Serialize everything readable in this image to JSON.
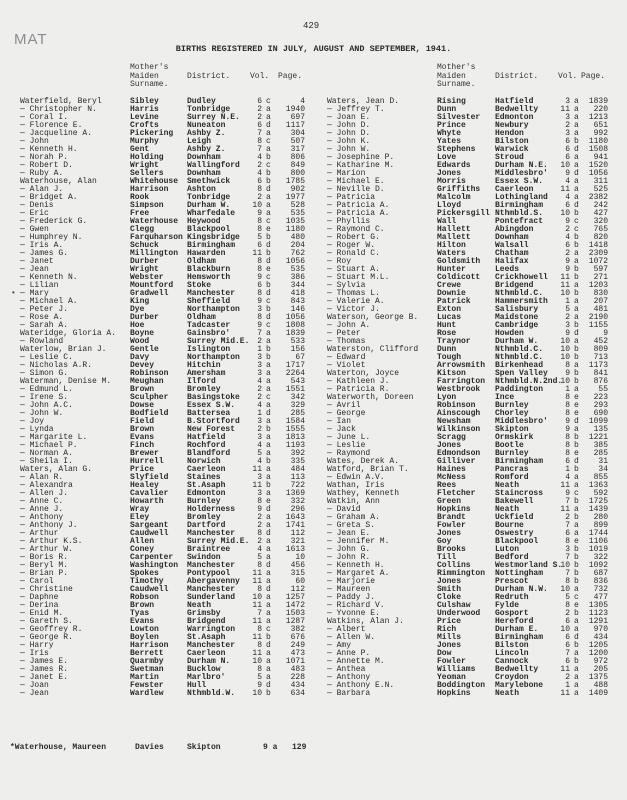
{
  "stamp": "MAT",
  "page_number": "429",
  "title": "BIRTHS REGISTERED IN JULY, AUGUST AND SEPTEMBER, 1941.",
  "column_headers": {
    "maiden": [
      "Mother's",
      "Maiden",
      "Surname."
    ],
    "district": "District.",
    "vol": "Vol.",
    "page": "Page."
  },
  "left_rows": [
    [
      "Waterfield, Beryl",
      "Sibley",
      "Dudley",
      "6",
      "c",
      "4"
    ],
    [
      "— Christopher N.",
      "Harris",
      "Tonbridge",
      "2",
      "a",
      "1940"
    ],
    [
      "— Coral I.",
      "Levine",
      "Surrey N.E.",
      "2",
      "a",
      "697"
    ],
    [
      "— Florence E.",
      "Crofts",
      "Nuneaton",
      "6",
      "d",
      "1117"
    ],
    [
      "— Jacqueline A.",
      "Pickering",
      "Ashby Z.",
      "7",
      "a",
      "304"
    ],
    [
      "— John",
      "Murphy",
      "Leigh",
      "8",
      "c",
      "507"
    ],
    [
      "— Kenneth H.",
      "Gent",
      "Ashby Z.",
      "7",
      "a",
      "317"
    ],
    [
      "— Norah P.",
      "Holding",
      "Downham",
      "4",
      "b",
      "806"
    ],
    [
      "— Robert D.",
      "Wright",
      "Wallingford",
      "2",
      "c",
      "849"
    ],
    [
      "— Ruby A.",
      "Sellers",
      "Downham",
      "4",
      "b",
      "800"
    ],
    [
      "Waterhouse, Alan",
      "Whitehouse",
      "Smethwick",
      "6",
      "b",
      "1785"
    ],
    [
      "— Alan J.",
      "Harrison",
      "Ashton",
      "8",
      "d",
      "902"
    ],
    [
      "— Bridget A.",
      "Rook",
      "Tonbridge",
      "2",
      "a",
      "1977"
    ],
    [
      "— Denis",
      "Simpson",
      "Durham W.",
      "10",
      "a",
      "528"
    ],
    [
      "— Eric",
      "Free",
      "Wharfedale",
      "9",
      "a",
      "535"
    ],
    [
      "— Frederick G.",
      "Waterhouse",
      "Heywood",
      "8",
      "c",
      "1035"
    ],
    [
      "— Gwen",
      "Clegg",
      "Blackpool",
      "8",
      "e",
      "1180"
    ],
    [
      "— Humphrey N.",
      "Farquharson",
      "Kingsbridge",
      "5",
      "b",
      "480"
    ],
    [
      "— Iris A.",
      "Schuck",
      "Birmingham",
      "6",
      "d",
      "204"
    ],
    [
      "— James G.",
      "Millington",
      "Hawarden",
      "11",
      "b",
      "762"
    ],
    [
      "— Janet",
      "Durber",
      "Oldham",
      "8",
      "d",
      "1056"
    ],
    [
      "— Jean",
      "Wright",
      "Blackburn",
      "8",
      "e",
      "535"
    ],
    [
      "— Kenneth N.",
      "Webster",
      "Hemsworth",
      "9",
      "c",
      "386"
    ],
    [
      "— Lilian",
      "Mountford",
      "Stoke",
      "6",
      "b",
      "344"
    ],
    [
      "— Mary",
      "Gradwell",
      "Manchester",
      "8",
      "d",
      "418"
    ],
    [
      "— Michael A.",
      "King",
      "Sheffield",
      "9",
      "c",
      "843"
    ],
    [
      "— Peter J.",
      "Dye",
      "Northampton",
      "3",
      "b",
      "146"
    ],
    [
      "— Rose A.",
      "Durber",
      "Oldham",
      "8",
      "d",
      "1056"
    ],
    [
      "— Sarah A.",
      "Hoe",
      "Tadcaster",
      "9",
      "c",
      "1808"
    ],
    [
      "Wateridge, Gloria A.",
      "Boyne",
      "Gainsbro'",
      "7",
      "a",
      "1839"
    ],
    [
      "— Rowland",
      "Wood",
      "Surrey Mid.E.",
      "2",
      "a",
      "533"
    ],
    [
      "Waterlow, Brian J.",
      "Gentle",
      "Islington",
      "1",
      "b",
      "156"
    ],
    [
      "— Leslie C.",
      "Davy",
      "Northampton",
      "3",
      "b",
      "67"
    ],
    [
      "— Nicholas A.R.",
      "Devey",
      "Hitchin",
      "3",
      "a",
      "1717"
    ],
    [
      "— Simon G.",
      "Robinson",
      "Amersham",
      "3",
      "a",
      "2264"
    ],
    [
      "Waterman, Denise M.",
      "Meughan",
      "Ilford",
      "4",
      "a",
      "543"
    ],
    [
      "— Edmund L.",
      "Brown",
      "Bromley",
      "2",
      "a",
      "1551"
    ],
    [
      "— Irene S.",
      "Sculpher",
      "Basingstoke",
      "2",
      "c",
      "342"
    ],
    [
      "— John A.C.",
      "Dowse",
      "Essex S.W.",
      "4",
      "a",
      "329"
    ],
    [
      "— John W.",
      "Bodfield",
      "Battersea",
      "1",
      "d",
      "285"
    ],
    [
      "— Joy",
      "Field",
      "B.Stortford",
      "3",
      "a",
      "1584"
    ],
    [
      "— Lynda",
      "Brown",
      "New Forest",
      "2",
      "b",
      "1555"
    ],
    [
      "— Margarite L.",
      "Evans",
      "Hatfield",
      "3",
      "a",
      "1813"
    ],
    [
      "— Michael P.",
      "Finch",
      "Rochford",
      "4",
      "a",
      "1193"
    ],
    [
      "— Norman A.",
      "Brewer",
      "Blandford",
      "5",
      "a",
      "392"
    ],
    [
      "— Sheila I.",
      "Hurrell",
      "Norwich",
      "4",
      "b",
      "335"
    ],
    [
      "Waters, Alan G.",
      "Price",
      "Caerleon",
      "11",
      "a",
      "484"
    ],
    [
      "— Alan R.",
      "Slyfield",
      "Staines",
      "3",
      "a",
      "113"
    ],
    [
      "— Alexandra",
      "Healey",
      "St.Asaph",
      "11",
      "b",
      "722"
    ],
    [
      "— Allen J.",
      "Cavalier",
      "Edmonton",
      "3",
      "a",
      "1369"
    ],
    [
      "— Anne C.",
      "Howarth",
      "Burnley",
      "8",
      "e",
      "332"
    ],
    [
      "— Anne J.",
      "Wray",
      "Holderness",
      "9",
      "d",
      "296"
    ],
    [
      "— Anthony",
      "Eley",
      "Bromley",
      "2",
      "a",
      "1643"
    ],
    [
      "— Anthony J.",
      "Sargeant",
      "Dartford",
      "2",
      "a",
      "1741"
    ],
    [
      "— Arthur",
      "Caudwell",
      "Manchester",
      "8",
      "d",
      "112"
    ],
    [
      "— Arthur K.S.",
      "Allen",
      "Surrey Mid.E.",
      "2",
      "a",
      "321"
    ],
    [
      "— Arthur W.",
      "Coney",
      "Braintree",
      "4",
      "a",
      "1613"
    ],
    [
      "— Boris R.",
      "Carpenter",
      "Swindon",
      "5",
      "a",
      "10"
    ],
    [
      "— Beryl M.",
      "Washington",
      "Manchester",
      "8",
      "d",
      "456"
    ],
    [
      "— Brian P.",
      "Spokes",
      "Pontypool",
      "11",
      "a",
      "315"
    ],
    [
      "— Carol",
      "Timothy",
      "Abergavenny",
      "11",
      "a",
      "60"
    ],
    [
      "— Christine",
      "Caudwell",
      "Manchester",
      "8",
      "d",
      "112"
    ],
    [
      "— Daphne",
      "Robson",
      "Sunderland",
      "10",
      "a",
      "1257"
    ],
    [
      "— Derina",
      "Brown",
      "Neath",
      "11",
      "a",
      "1472"
    ],
    [
      "— Enid M.",
      "Tyas",
      "Grimsby",
      "7",
      "a",
      "1503"
    ],
    [
      "— Gareth S.",
      "Evans",
      "Bridgend",
      "11",
      "a",
      "1287"
    ],
    [
      "— Geoffrey R.",
      "Lowton",
      "Warrington",
      "8",
      "c",
      "382"
    ],
    [
      "— George R.",
      "Boylen",
      "St.Asaph",
      "11",
      "b",
      "676"
    ],
    [
      "— Harry",
      "Harrison",
      "Manchester",
      "8",
      "d",
      "249"
    ],
    [
      "— Iris",
      "Berrett",
      "Caerleon",
      "11",
      "a",
      "473"
    ],
    [
      "— James E.",
      "Quarmby",
      "Durham N.",
      "10",
      "a",
      "1071"
    ],
    [
      "— James R.",
      "Swetman",
      "Bucklow",
      "8",
      "a",
      "483"
    ],
    [
      "— Janet E.",
      "Martin",
      "Marlbro'",
      "5",
      "a",
      "228"
    ],
    [
      "— Joan",
      "Fewster",
      "Hull",
      "9",
      "d",
      "434"
    ],
    [
      "— Jean",
      "Wardlew",
      "Nthmbld.W.",
      "10",
      "b",
      "634"
    ]
  ],
  "right_rows": [
    [
      "Waters, Jean D.",
      "Rising",
      "Hatfield",
      "3",
      "a",
      "1839"
    ],
    [
      "— Jeffrey T.",
      "Dunn",
      "Bedwellty",
      "11",
      "a",
      "220"
    ],
    [
      "— Joan E.",
      "Silvester",
      "Edmonton",
      "3",
      "a",
      "1213"
    ],
    [
      "— John D.",
      "Prince",
      "Newbury",
      "2",
      "a",
      "651"
    ],
    [
      "— John D.",
      "Whyte",
      "Hendon",
      "3",
      "a",
      "992"
    ],
    [
      "— John K.",
      "Yates",
      "Bilston",
      "6",
      "b",
      "1180"
    ],
    [
      "— John W.",
      "Stephens",
      "Warwick",
      "6",
      "d",
      "1508"
    ],
    [
      "— Josephine P.",
      "Love",
      "Stroud",
      "6",
      "a",
      "941"
    ],
    [
      "— Katharine M.",
      "Edwards",
      "Durham N.E.",
      "10",
      "a",
      "1520"
    ],
    [
      "— Marion",
      "Jones",
      "Middlesbro'",
      "9",
      "d",
      "1056"
    ],
    [
      "— Michael E.",
      "Morris",
      "Essex S.W.",
      "4",
      "a",
      "311"
    ],
    [
      "— Neville D.",
      "Griffiths",
      "Caerleon",
      "11",
      "a",
      "525"
    ],
    [
      "— Patricia",
      "Malcolm",
      "Lothingland",
      "4",
      "a",
      "2382"
    ],
    [
      "— Patricia A.",
      "Lloyd",
      "Birmingham",
      "6",
      "d",
      "242"
    ],
    [
      "— Patricia A.",
      "Pickersgill",
      "Nthmbld.S.",
      "10",
      "b",
      "427"
    ],
    [
      "— Phyllis",
      "Wall",
      "Pontefract",
      "9",
      "c",
      "320"
    ],
    [
      "— Raymond C.",
      "Hallett",
      "Abingdon",
      "2",
      "c",
      "765"
    ],
    [
      "— Robert G.",
      "Mallett",
      "Downham",
      "4",
      "b",
      "820"
    ],
    [
      "— Roger W.",
      "Hilton",
      "Walsall",
      "6",
      "b",
      "1418"
    ],
    [
      "— Ronald C.",
      "Waters",
      "Chatham",
      "2",
      "a",
      "2309"
    ],
    [
      "— Roy",
      "Goldsmith",
      "Halifax",
      "9",
      "a",
      "1072"
    ],
    [
      "— Stuart A.",
      "Hunter",
      "Leeds",
      "9",
      "b",
      "597"
    ],
    [
      "— Stuart M.L.",
      "Coldicott",
      "Crickhowell",
      "11",
      "b",
      "271"
    ],
    [
      "— Sylvia",
      "Crewe",
      "Bridgend",
      "11",
      "a",
      "1203"
    ],
    [
      "— Thomas L.",
      "Downie",
      "Nthmbld.C.",
      "10",
      "b",
      "830"
    ],
    [
      "— Valerie A.",
      "Patrick",
      "Hammersmith",
      "1",
      "a",
      "207"
    ],
    [
      "— Victor J.",
      "Exton",
      "Salisbury",
      "5",
      "a",
      "481"
    ],
    [
      "Waterson, George B.",
      "Lucas",
      "Maidstone",
      "2",
      "a",
      "2190"
    ],
    [
      "— John A.",
      "Hunt",
      "Cambridge",
      "3",
      "b",
      "1155"
    ],
    [
      "— Peter",
      "Rose",
      "Howden",
      "9",
      "d",
      "9"
    ],
    [
      "— Thomas",
      "Traynor",
      "Durham W.",
      "10",
      "a",
      "452"
    ],
    [
      "Waterston, Clifford",
      "Dunn",
      "Nthmbld.C.",
      "10",
      "b",
      "809"
    ],
    [
      "— Edward",
      "Tough",
      "Nthmbld.C.",
      "10",
      "b",
      "713"
    ],
    [
      "— Violet",
      "Arrowsmith",
      "Birkenhead",
      "8",
      "a",
      "1173"
    ],
    [
      "Waterton, Joyce",
      "Kitson",
      "Spen Valley",
      "9",
      "b",
      "841"
    ],
    [
      "— Kathleen J.",
      "Farrington",
      "Nthmbld.N.2nd.",
      "10",
      "b",
      "876"
    ],
    [
      "— Patricia R.",
      "Westbrook",
      "Paddington",
      "1",
      "a",
      "55"
    ],
    [
      "Waterworth, Doreen",
      "Lyon",
      "Ince",
      "8",
      "e",
      "223"
    ],
    [
      "— Avril",
      "Robinson",
      "Burnley",
      "8",
      "e",
      "293"
    ],
    [
      "— George",
      "Ainscough",
      "Chorley",
      "8",
      "e",
      "690"
    ],
    [
      "— Ian",
      "Newsham",
      "Middlesbro'",
      "9",
      "d",
      "1099"
    ],
    [
      "— Jack",
      "Wilkinson",
      "Skipton",
      "9",
      "a",
      "135"
    ],
    [
      "— June L.",
      "Scragg",
      "Ormskirk",
      "8",
      "b",
      "1221"
    ],
    [
      "— Leslie",
      "Jones",
      "Bootle",
      "8",
      "b",
      "385"
    ],
    [
      "— Raymond",
      "Edmondson",
      "Burnley",
      "8",
      "e",
      "285"
    ],
    [
      "Wates, Derek A.",
      "Gilliver",
      "Birmingham",
      "6",
      "d",
      "31"
    ],
    [
      "Watford, Brian T.",
      "Haines",
      "Pancras",
      "1",
      "b",
      "34"
    ],
    [
      "— Edwin A.V.",
      "McNess",
      "Romford",
      "4",
      "a",
      "855"
    ],
    [
      "Wathan, Iris",
      "Rees",
      "Neath",
      "11",
      "a",
      "1363"
    ],
    [
      "Wathey, Kenneth",
      "Fletcher",
      "Staincross",
      "9",
      "c",
      "592"
    ],
    [
      "Watkin, Ann",
      "Green",
      "Bakewell",
      "7",
      "b",
      "1725"
    ],
    [
      "— David",
      "Hopkins",
      "Neath",
      "11",
      "a",
      "1439"
    ],
    [
      "— Graham A.",
      "Brandt",
      "Uckfield",
      "2",
      "b",
      "280"
    ],
    [
      "— Greta S.",
      "Fowler",
      "Bourne",
      "7",
      "a",
      "899"
    ],
    [
      "— Jean E.",
      "Jones",
      "Oswestry",
      "6",
      "a",
      "1744"
    ],
    [
      "— Jennifer M.",
      "Goy",
      "Blackpool",
      "8",
      "e",
      "1106"
    ],
    [
      "— John G.",
      "Brooks",
      "Luton",
      "3",
      "b",
      "1019"
    ],
    [
      "— John R.",
      "Till",
      "Bedford",
      "7",
      "b",
      "322"
    ],
    [
      "— Kenneth H.",
      "Collins",
      "Westmorland S.",
      "10",
      "b",
      "1092"
    ],
    [
      "— Margaret A.",
      "Rimmington",
      "Nottingham",
      "7",
      "b",
      "687"
    ],
    [
      "— Marjorie",
      "Jones",
      "Prescot",
      "8",
      "b",
      "836"
    ],
    [
      "— Maureen",
      "Smith",
      "Durham N.W.",
      "10",
      "a",
      "732"
    ],
    [
      "— Paddy J.",
      "Cloke",
      "Redruth",
      "5",
      "c",
      "477"
    ],
    [
      "— Richard V.",
      "Culshaw",
      "Fylde",
      "8",
      "e",
      "1305"
    ],
    [
      "— Yvonne E.",
      "Underwood",
      "Gosport",
      "2",
      "b",
      "1123"
    ],
    [
      "Watkins, Alan J.",
      "Price",
      "Hereford",
      "6",
      "a",
      "1291"
    ],
    [
      "— Albert",
      "Rich",
      "Durham E.",
      "10",
      "a",
      "970"
    ],
    [
      "— Allen W.",
      "Mills",
      "Birmingham",
      "6",
      "d",
      "434"
    ],
    [
      "— Amy",
      "Jones",
      "Bilston",
      "6",
      "b",
      "1205"
    ],
    [
      "— Anne P.",
      "Dow",
      "Lincoln",
      "7",
      "a",
      "1200"
    ],
    [
      "— Annette M.",
      "Fowler",
      "Cannock",
      "6",
      "b",
      "972"
    ],
    [
      "— Anthea",
      "Williams",
      "Bedwellty",
      "11",
      "a",
      "205"
    ],
    [
      "— Anthony",
      "Yeoman",
      "Croydon",
      "2",
      "a",
      "1375"
    ],
    [
      "— Anthony E.N.",
      "Boddington",
      "Marylebone",
      "1",
      "a",
      "488"
    ],
    [
      "— Barbara",
      "Hopkins",
      "Neath",
      "11",
      "a",
      "1409"
    ]
  ],
  "marked_row_note": "•",
  "footnote": {
    "name": "*Waterhouse, Maureen",
    "maiden": "Davies",
    "district": "Skipton",
    "vol": "9 a",
    "page": "129"
  }
}
